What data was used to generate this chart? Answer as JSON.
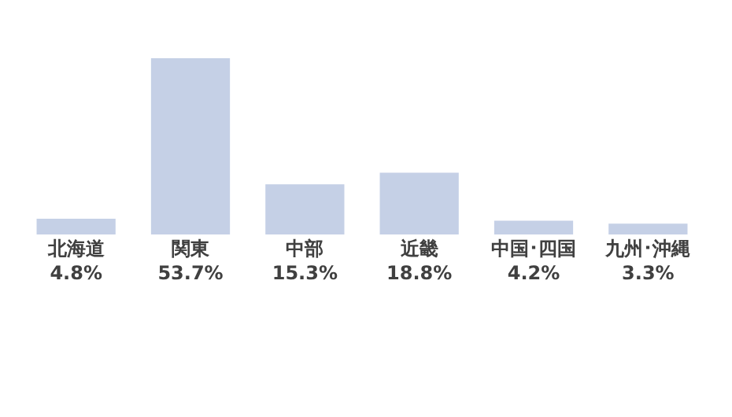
{
  "chart_data": {
    "type": "bar",
    "categories": [
      "北海道",
      "関東",
      "中部",
      "近畿",
      "中国･四国",
      "九州･沖縄"
    ],
    "values": [
      4.8,
      53.7,
      15.3,
      18.8,
      4.2,
      3.3
    ],
    "value_labels": [
      "4.8%",
      "53.7%",
      "15.3%",
      "18.8%",
      "4.2%",
      "3.3%"
    ],
    "color": "#c5d0e6",
    "ylim": [
      0,
      53.7
    ]
  }
}
